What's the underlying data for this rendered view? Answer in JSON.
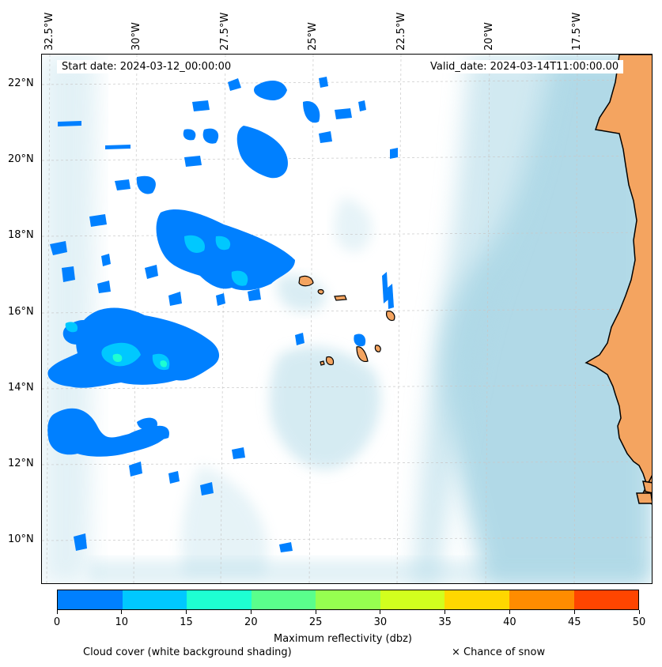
{
  "map": {
    "start_date": "Start date: 2024-03-12_00:00:00",
    "valid_date": "Valid_date: 2024-03-14T11:00:00.00",
    "lon_labels": [
      "32.5°W",
      "30°W",
      "27.5°W",
      "25°W",
      "22.5°W",
      "20°W",
      "17.5°W"
    ],
    "lat_labels": [
      "22°N",
      "20°N",
      "18°N",
      "16°N",
      "14°N",
      "12°N",
      "10°N"
    ],
    "land_color": "#f4a460",
    "cloud_color": "#add8e6",
    "gridlines": true
  },
  "colorbar": {
    "label": "Maximum reflectivity (dbz)",
    "ticks": [
      "0",
      "10",
      "15",
      "20",
      "25",
      "30",
      "35",
      "40",
      "45",
      "50"
    ],
    "colors": [
      "#0080ff",
      "#00c8ff",
      "#1effd2",
      "#5aff8c",
      "#96ff50",
      "#d2ff1e",
      "#ffd700",
      "#ff8c00",
      "#ff4500"
    ]
  },
  "legend": {
    "cloud_cover": "Cloud cover (white background shading)",
    "snow": "× Chance of snow"
  }
}
